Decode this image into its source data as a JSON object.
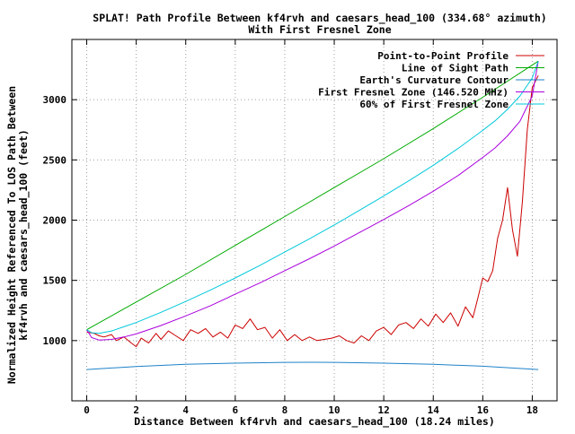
{
  "chart_data": {
    "type": "line",
    "title": "SPLAT! Path Profile Between kf4rvh and caesars_head_100 (334.68° azimuth)",
    "subtitle": "With First Fresnel Zone",
    "xlabel": "Distance Between kf4rvh and caesars_head_100 (18.24 miles)",
    "ylabel_line1": "Normalized Height Referenced To LOS Path Between",
    "ylabel_line2": "kf4rvh and caesars_head_100 (feet)",
    "xlim": [
      -0.6,
      19.0
    ],
    "ylim": [
      500,
      3500
    ],
    "x_ticks": [
      0,
      2,
      4,
      6,
      8,
      10,
      12,
      14,
      16,
      18
    ],
    "y_ticks": [
      1000,
      1500,
      2000,
      2500,
      3000
    ],
    "grid": true,
    "legend_position": "top-right",
    "series": [
      {
        "name": "Point-to-Point Profile",
        "color": "#cc0000",
        "x": [
          0,
          0.3,
          0.5,
          0.7,
          1.0,
          1.2,
          1.5,
          1.8,
          2.0,
          2.2,
          2.5,
          2.8,
          3.0,
          3.3,
          3.6,
          3.9,
          4.2,
          4.5,
          4.8,
          5.1,
          5.4,
          5.7,
          6.0,
          6.3,
          6.6,
          6.9,
          7.2,
          7.5,
          7.8,
          8.1,
          8.4,
          8.7,
          9.0,
          9.3,
          9.6,
          9.9,
          10.2,
          10.5,
          10.8,
          11.1,
          11.4,
          11.7,
          12.0,
          12.3,
          12.6,
          12.9,
          13.2,
          13.5,
          13.8,
          14.1,
          14.4,
          14.7,
          15.0,
          15.3,
          15.6,
          15.8,
          16.0,
          16.2,
          16.4,
          16.6,
          16.8,
          17.0,
          17.2,
          17.4,
          17.6,
          17.8,
          18.0,
          18.24
        ],
        "y": [
          1070,
          1060,
          1040,
          1030,
          1050,
          1000,
          1030,
          980,
          950,
          1020,
          980,
          1060,
          1010,
          1080,
          1040,
          1000,
          1090,
          1060,
          1100,
          1030,
          1070,
          1020,
          1130,
          1100,
          1180,
          1090,
          1110,
          1020,
          1090,
          1000,
          1050,
          1000,
          1030,
          1000,
          1010,
          1020,
          1040,
          1000,
          980,
          1040,
          1000,
          1080,
          1110,
          1050,
          1130,
          1150,
          1100,
          1180,
          1120,
          1220,
          1150,
          1230,
          1120,
          1280,
          1190,
          1350,
          1520,
          1490,
          1580,
          1850,
          2000,
          2270,
          1920,
          1700,
          2150,
          2750,
          3100,
          3200
        ]
      },
      {
        "name": "Line of Sight Path",
        "color": "#00aa00",
        "x": [
          0,
          2,
          4,
          6,
          8,
          10,
          12,
          14,
          16,
          18.24
        ],
        "y": [
          1090,
          1320,
          1550,
          1790,
          2030,
          2270,
          2510,
          2760,
          3020,
          3320
        ]
      },
      {
        "name": "Earth's Curvature Contour",
        "color": "#1e82c8",
        "x": [
          0,
          2,
          4,
          6,
          8,
          9.12,
          10,
          12,
          14,
          16,
          18.24
        ],
        "y": [
          760,
          785,
          803,
          813,
          819,
          820,
          819,
          813,
          803,
          787,
          760
        ]
      },
      {
        "name": "First Fresnel Zone (146.520 MHz)",
        "color": "#aa00dd",
        "x": [
          0,
          0.2,
          0.5,
          1,
          1.5,
          2,
          3,
          4,
          5,
          6,
          7,
          8,
          9,
          10,
          11,
          12,
          13,
          14,
          15,
          16,
          16.5,
          17,
          17.5,
          18,
          18.24
        ],
        "y": [
          1090,
          1025,
          1005,
          1010,
          1030,
          1055,
          1125,
          1205,
          1290,
          1385,
          1480,
          1580,
          1680,
          1785,
          1895,
          2005,
          2120,
          2240,
          2370,
          2520,
          2600,
          2700,
          2820,
          3030,
          3320
        ]
      },
      {
        "name": "60% of First Fresnel Zone",
        "color": "#00c8dc",
        "x": [
          0,
          0.2,
          0.5,
          1,
          1.5,
          2,
          3,
          4,
          5,
          6,
          7,
          8,
          9,
          10,
          11,
          12,
          13,
          14,
          15,
          16,
          16.5,
          17,
          17.5,
          18,
          18.24
        ],
        "y": [
          1090,
          1065,
          1060,
          1080,
          1115,
          1150,
          1235,
          1325,
          1420,
          1520,
          1625,
          1735,
          1845,
          1960,
          2080,
          2200,
          2325,
          2455,
          2595,
          2745,
          2825,
          2920,
          3030,
          3180,
          3320
        ]
      }
    ],
    "legend": [
      "Point-to-Point Profile",
      "Line of Sight Path",
      "Earth's Curvature Contour",
      "First Fresnel Zone (146.520 MHz)",
      "60% of First Fresnel Zone"
    ]
  }
}
